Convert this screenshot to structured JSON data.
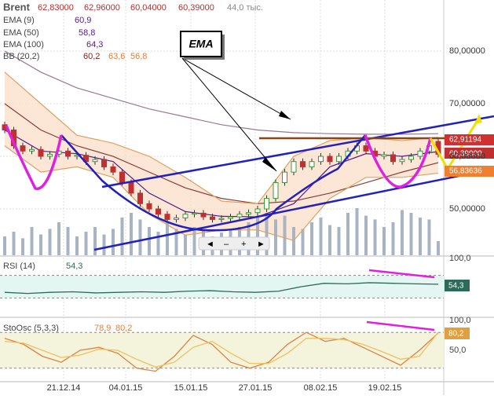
{
  "header": {
    "symbol": "Brent",
    "ohlc": [
      "62,83000",
      "62,96000",
      "60,04000",
      "60,39000"
    ],
    "volume": "44,0 тыс."
  },
  "indicators": [
    {
      "name": "EMA (9)",
      "value": "60,9"
    },
    {
      "name": "EMA (50)",
      "value": "58,8"
    },
    {
      "name": "EMA (100)",
      "value": "64,3"
    },
    {
      "name": "BB (20,2)",
      "values": [
        "60,2",
        "63,6",
        "56,8"
      ]
    }
  ],
  "annotation": "EMA",
  "price_chart": {
    "ylim": [
      41.2,
      89.7
    ],
    "ticks": [
      {
        "value": 80,
        "label": "80,00000"
      },
      {
        "value": 70,
        "label": "70,00000"
      },
      {
        "value": 60,
        "label": "60,00000"
      },
      {
        "value": 50,
        "label": "50,00000"
      }
    ],
    "price_tags": [
      "62,91194",
      "60,39000",
      "56,83636"
    ],
    "candles": [
      [
        66,
        65
      ],
      [
        65,
        62
      ],
      [
        62,
        61
      ],
      [
        61,
        61.3
      ],
      [
        61.3,
        60
      ],
      [
        60,
        60.4
      ],
      [
        60.4,
        61
      ],
      [
        61,
        60
      ],
      [
        60,
        60.2
      ],
      [
        60.2,
        59
      ],
      [
        59,
        59.4
      ],
      [
        59.4,
        58
      ],
      [
        58,
        57
      ],
      [
        57,
        55
      ],
      [
        55,
        53
      ],
      [
        53,
        51
      ],
      [
        51,
        50
      ],
      [
        50,
        49
      ],
      [
        49,
        48
      ],
      [
        48,
        48.3
      ],
      [
        48.3,
        49
      ],
      [
        49,
        49.2
      ],
      [
        49.2,
        48.5
      ],
      [
        48.5,
        48
      ],
      [
        48,
        48.2
      ],
      [
        48.2,
        48.5
      ],
      [
        48.5,
        49
      ],
      [
        49,
        49.3
      ],
      [
        49.3,
        50
      ],
      [
        50,
        52
      ],
      [
        52,
        55
      ],
      [
        55,
        57
      ],
      [
        57,
        59
      ],
      [
        59,
        58
      ],
      [
        58,
        59
      ],
      [
        59,
        60
      ],
      [
        60,
        59
      ],
      [
        59,
        60
      ],
      [
        60,
        61
      ],
      [
        61,
        62
      ],
      [
        62,
        61
      ],
      [
        61,
        60
      ],
      [
        60,
        60.3
      ],
      [
        60.3,
        59
      ],
      [
        59,
        59.4
      ],
      [
        59.4,
        60
      ],
      [
        60,
        61
      ],
      [
        61,
        62
      ],
      [
        62.83,
        60.39
      ]
    ],
    "volumes": [
      20,
      25,
      18,
      30,
      22,
      28,
      35,
      30,
      20,
      25,
      30,
      22,
      28,
      40,
      45,
      38,
      30,
      25,
      35,
      28,
      22,
      30,
      26,
      20,
      24,
      28,
      30,
      35,
      40,
      45,
      38,
      42,
      30,
      28,
      35,
      40,
      32,
      30,
      45,
      50,
      42,
      38,
      30,
      35,
      48,
      45,
      40,
      38,
      15
    ],
    "ema9": [
      65,
      61,
      60.5,
      59,
      53,
      49.5,
      48.6,
      48.5,
      51,
      58,
      60.5,
      60,
      60.9
    ],
    "ema50": [
      70,
      65,
      62,
      60,
      57,
      54,
      52,
      51,
      51.5,
      53,
      55,
      57,
      58.8
    ],
    "ema100": [
      80,
      76,
      73,
      71,
      69,
      67.5,
      66,
      65,
      64.5,
      64.3,
      64.2,
      64.2,
      64.3
    ],
    "bb_upper": [
      76,
      70,
      64,
      62.5,
      60,
      56,
      51.5,
      51,
      60,
      63,
      63.5,
      63,
      63.6
    ],
    "bb_lower": [
      62,
      57,
      58,
      56,
      49,
      45,
      46,
      46,
      44,
      52,
      56,
      56,
      56.8
    ]
  },
  "rsi": {
    "label": "RSI (14)",
    "value": "54,3",
    "top_label": "100,0",
    "tag": "54,3",
    "values": [
      40,
      38,
      40,
      41,
      39,
      40,
      41,
      40,
      42,
      43,
      41,
      40,
      42,
      50,
      56,
      55,
      57,
      56,
      55,
      54.3
    ]
  },
  "stoch": {
    "label": "StoOsc (5,3,3)",
    "values": [
      "78,9",
      "80,2"
    ],
    "top_label": "100,0",
    "mid_label": "50,0",
    "tag": "80,2",
    "k": [
      70,
      60,
      40,
      30,
      50,
      55,
      45,
      20,
      15,
      40,
      75,
      60,
      30,
      20,
      30,
      60,
      80,
      65,
      70,
      55,
      40,
      25,
      50,
      78.9
    ],
    "d": [
      65,
      62,
      50,
      38,
      42,
      52,
      50,
      35,
      22,
      30,
      55,
      65,
      45,
      28,
      28,
      45,
      70,
      70,
      68,
      60,
      48,
      35,
      40,
      80.2
    ]
  },
  "dates": [
    "21.12.14",
    "04.01.15",
    "15.01.15",
    "27.01.15",
    "08.02.15",
    "19.02.15"
  ]
}
